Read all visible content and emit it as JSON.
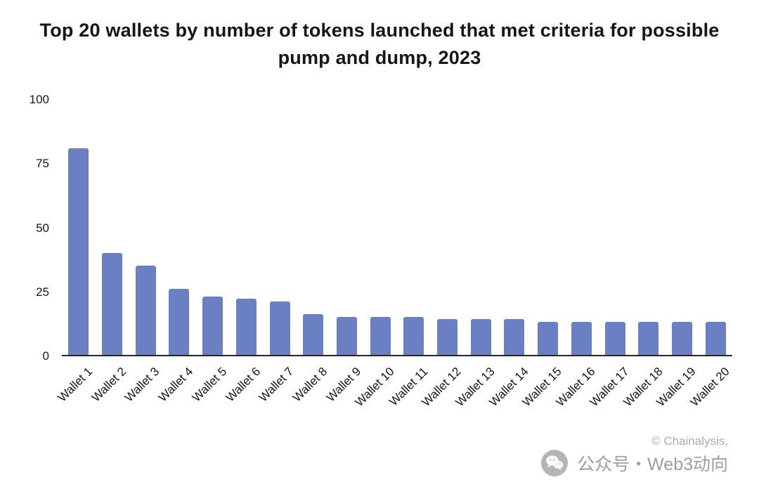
{
  "chart_data": {
    "type": "bar",
    "title": "Top 20 wallets by number of tokens launched that met criteria for possible pump and dump, 2023",
    "categories": [
      "Wallet 1",
      "Wallet 2",
      "Wallet 3",
      "Wallet 4",
      "Wallet 5",
      "Wallet 6",
      "Wallet 7",
      "Wallet 8",
      "Wallet 9",
      "Wallet 10",
      "Wallet 11",
      "Wallet 12",
      "Wallet 13",
      "Wallet 14",
      "Wallet 15",
      "Wallet 16",
      "Wallet 17",
      "Wallet 18",
      "Wallet 19",
      "Wallet 20"
    ],
    "values": [
      81,
      40,
      35,
      26,
      23,
      22,
      21,
      16,
      15,
      15,
      15,
      14,
      14,
      14,
      13,
      13,
      13,
      13,
      13,
      13
    ],
    "xlabel": "",
    "ylabel": "",
    "ylim": [
      0,
      100
    ],
    "yticks": [
      0,
      25,
      50,
      75,
      100
    ],
    "grid": false,
    "legend": "none",
    "bar_color": "#6b80c2"
  },
  "footer": {
    "attribution": "© Chainalysis,",
    "watermark": "公众号・Web3动向"
  },
  "icons": {
    "wechat": "wechat-icon"
  },
  "colors": {
    "bar": "#6b80c2",
    "title_text": "#161616",
    "axis_text": "#161616",
    "axis_line": "#262626",
    "footer_text": "#9e9e9e",
    "background": "#ffffff"
  }
}
